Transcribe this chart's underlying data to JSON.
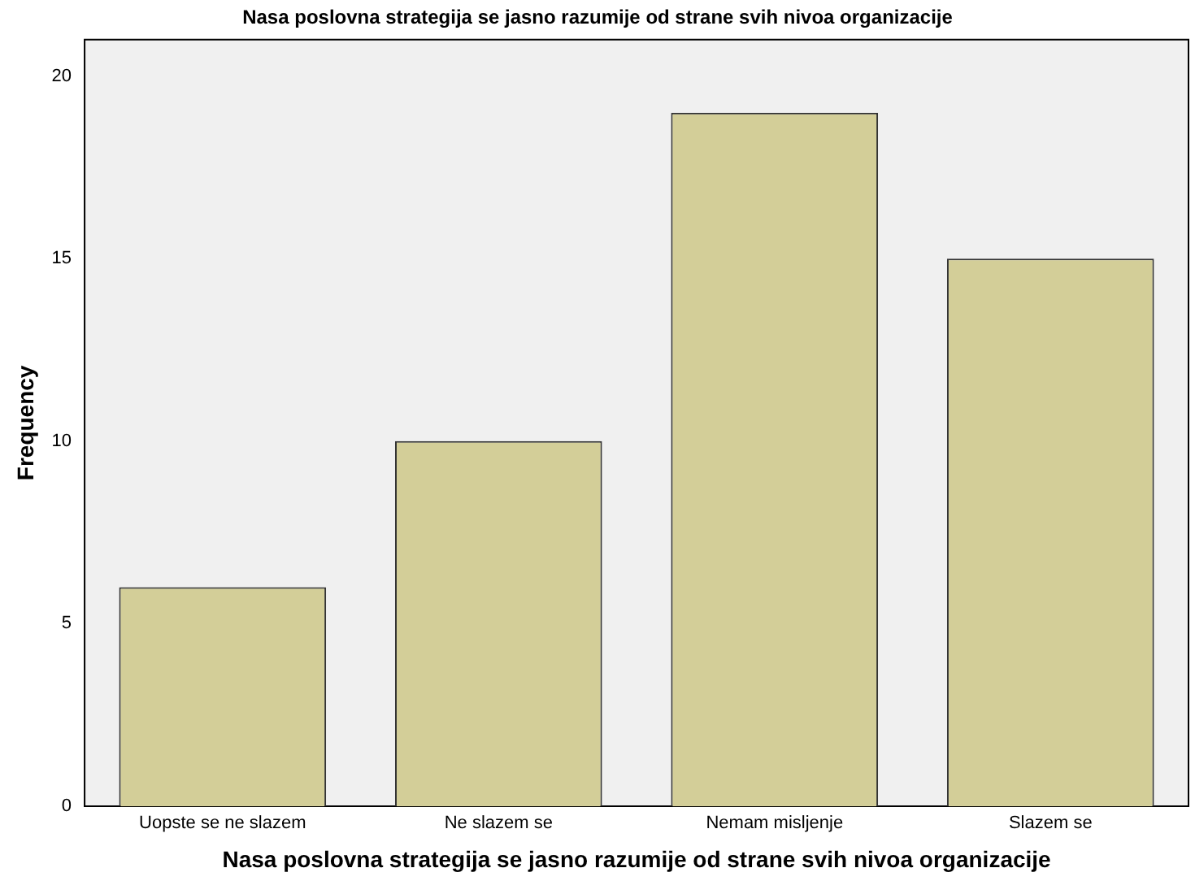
{
  "chart_data": {
    "type": "bar",
    "title": "Nasa poslovna strategija se jasno razumije od strane svih nivoa organizacije",
    "xlabel": "Nasa poslovna strategija se jasno razumije od strane svih nivoa organizacije",
    "ylabel": "Frequency",
    "categories": [
      "Uopste se ne slazem",
      "Ne slazem se",
      "Nemam misljenje",
      "Slazem se"
    ],
    "values": [
      6,
      10,
      19,
      15
    ],
    "color": "#d3ce98",
    "ylim": [
      0,
      21
    ],
    "yticks": [
      0,
      5,
      10,
      15,
      20
    ],
    "grid": false,
    "legend": false
  }
}
